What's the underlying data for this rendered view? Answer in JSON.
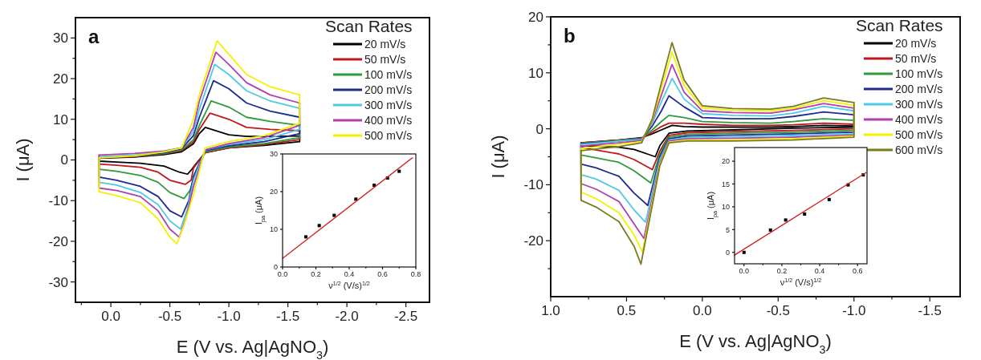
{
  "chart_data": [
    {
      "type": "line",
      "xlabel": "E (V vs. Ag|AgNO$_{3}$)",
      "ylabel": "I (μA)",
      "legend_title": "Scan Rates",
      "legend": "top right",
      "annotations": [
        "a"
      ],
      "xlim": [
        0.3,
        -2.7
      ],
      "ylim": [
        -35,
        35
      ],
      "xticks": [
        {
          "value": 0.25,
          "label": null
        },
        {
          "value": 0,
          "label": "0.0"
        },
        {
          "value": -0.25,
          "label": null
        },
        {
          "value": -0.5,
          "label": "-0.5"
        },
        {
          "value": -0.75,
          "label": null
        },
        {
          "value": -1,
          "label": "-1.0"
        },
        {
          "value": -1.25,
          "label": null
        },
        {
          "value": -1.5,
          "label": "-1.5"
        },
        {
          "value": -1.75,
          "label": null
        },
        {
          "value": -2,
          "label": "-2.0"
        },
        {
          "value": -2.25,
          "label": null
        },
        {
          "value": -2.5,
          "label": "-2.5"
        }
      ],
      "yticks": [
        30,
        {
          "value": 25,
          "label": null
        },
        20,
        {
          "value": 15,
          "label": null
        },
        10,
        {
          "value": 5,
          "label": null
        },
        0,
        {
          "value": -5,
          "label": null
        },
        -10,
        {
          "value": -15,
          "label": null
        },
        -20,
        {
          "value": -25,
          "label": null
        },
        -30
      ],
      "series": [
        {
          "name": "20 mV/s",
          "color": "#000000",
          "x": [
            0.1,
            -0.2,
            -0.45,
            -0.6,
            -0.7,
            -0.75,
            -0.8,
            -1.0,
            -1.15,
            -1.35,
            -1.6
          ],
          "values": [
            0.4,
            0.7,
            1.3,
            2,
            4,
            6.5,
            8,
            6.2,
            5.8,
            5.8,
            5.9
          ]
        },
        {
          "color": "#000000",
          "x": [
            -1.6,
            -1.6,
            -1.3,
            -1.0,
            -0.8,
            -0.72,
            -0.68,
            -0.65,
            -0.58,
            -0.45,
            -0.25,
            -0.05,
            0.1,
            0.1
          ],
          "values": [
            5.9,
            4.5,
            3.6,
            3,
            1.8,
            -1,
            -2.5,
            -3.5,
            -3,
            -1.5,
            -0.8,
            -0.5,
            -0.3,
            0.4
          ]
        },
        {
          "name": "50 mV/s",
          "color": "#c0161f",
          "x": [
            0.1,
            -0.2,
            -0.45,
            -0.6,
            -0.7,
            -0.75,
            -0.84,
            -1.0,
            -1.15,
            -1.35,
            -1.6
          ],
          "values": [
            0.5,
            0.8,
            1.5,
            2.3,
            4.5,
            7.5,
            11.5,
            10,
            8,
            7.5,
            7.2
          ]
        },
        {
          "color": "#c0161f",
          "x": [
            -1.6,
            -1.6,
            -1.3,
            -1.0,
            -0.8,
            -0.7,
            -0.68,
            -0.63,
            -0.5,
            -0.4,
            -0.25,
            -0.05,
            0.1,
            0.1
          ],
          "values": [
            7.2,
            5,
            3.8,
            3,
            1.8,
            -2,
            -5,
            -6,
            -5,
            -3,
            -1.8,
            -1.3,
            -1,
            0.5
          ]
        },
        {
          "name": "100 mV/s",
          "color": "#2e9b3a",
          "x": [
            0.1,
            -0.2,
            -0.45,
            -0.6,
            -0.7,
            -0.75,
            -0.85,
            -1.0,
            -1.15,
            -1.35,
            -1.6
          ],
          "values": [
            0.6,
            0.9,
            1.6,
            2.5,
            5,
            8.5,
            14.5,
            13,
            10.5,
            9.5,
            8.5
          ]
        },
        {
          "color": "#2e9b3a",
          "x": [
            -1.6,
            -1.6,
            -1.3,
            -1.0,
            -0.8,
            -0.72,
            -0.67,
            -0.62,
            -0.5,
            -0.4,
            -0.25,
            -0.05,
            0.1,
            0.1
          ],
          "values": [
            8.5,
            5.5,
            4,
            3.2,
            2,
            -3,
            -7.5,
            -9.5,
            -8,
            -5.5,
            -3.8,
            -2.8,
            -2.3,
            0.6
          ]
        },
        {
          "name": "200 mV/s",
          "color": "#1f2a8f",
          "x": [
            0.1,
            -0.2,
            -0.45,
            -0.6,
            -0.7,
            -0.75,
            -0.87,
            -1.0,
            -1.15,
            -1.35,
            -1.6
          ],
          "values": [
            0.7,
            1,
            1.8,
            2.8,
            6,
            10.5,
            19.5,
            17.5,
            14,
            12,
            10.5
          ]
        },
        {
          "color": "#1f2a8f",
          "x": [
            -1.6,
            -1.6,
            -1.3,
            -1.0,
            -0.8,
            -0.7,
            -0.66,
            -0.6,
            -0.5,
            -0.4,
            -0.25,
            -0.05,
            0.1,
            0.1
          ],
          "values": [
            10.5,
            6.5,
            4.5,
            3.5,
            2.3,
            -4,
            -10,
            -14,
            -12.5,
            -9,
            -6.5,
            -5,
            -4.2,
            0.7
          ]
        },
        {
          "name": "300 mV/s",
          "color": "#4ec9e6",
          "x": [
            0.1,
            -0.2,
            -0.45,
            -0.6,
            -0.7,
            -0.75,
            -0.88,
            -1.0,
            -1.15,
            -1.35,
            -1.6
          ],
          "values": [
            0.8,
            1.2,
            2,
            3,
            7,
            12.5,
            23.5,
            21,
            17,
            14.5,
            12.7
          ]
        },
        {
          "color": "#4ec9e6",
          "x": [
            -1.6,
            -1.6,
            -1.3,
            -1.0,
            -0.8,
            -0.7,
            -0.65,
            -0.59,
            -0.5,
            -0.4,
            -0.25,
            -0.05,
            0.1,
            0.1
          ],
          "values": [
            12.7,
            7.5,
            5,
            3.8,
            2.5,
            -5,
            -12,
            -17,
            -15,
            -11,
            -8,
            -6.2,
            -5.5,
            0.8
          ]
        },
        {
          "name": "400 mV/s",
          "color": "#b03fb0",
          "x": [
            0.1,
            -0.2,
            -0.45,
            -0.6,
            -0.7,
            -0.75,
            -0.89,
            -1.0,
            -1.15,
            -1.35,
            -1.6
          ],
          "values": [
            1.2,
            1.6,
            2.2,
            3,
            8,
            14.5,
            26.5,
            23.5,
            19,
            16,
            14
          ]
        },
        {
          "color": "#b03fb0",
          "x": [
            -1.6,
            -1.6,
            -1.3,
            -1.0,
            -0.8,
            -0.7,
            -0.64,
            -0.58,
            -0.5,
            -0.4,
            -0.25,
            -0.05,
            0.1,
            0.1
          ],
          "values": [
            14,
            8.5,
            5.5,
            4,
            2.5,
            -6.5,
            -14,
            -19,
            -17,
            -12.5,
            -9,
            -7.5,
            -6.9,
            1.2
          ]
        },
        {
          "name": "500 mV/s",
          "color": "#f5f000",
          "x": [
            0.1,
            -0.2,
            -0.45,
            -0.6,
            -0.7,
            -0.75,
            -0.9,
            -1.0,
            -1.15,
            -1.35,
            -1.6
          ],
          "values": [
            0.5,
            1,
            2,
            3,
            10,
            16,
            29.3,
            26,
            21,
            18,
            16
          ]
        },
        {
          "color": "#f5f000",
          "x": [
            -1.6,
            -1.6,
            -1.3,
            -1.0,
            -0.8,
            -0.7,
            -0.62,
            -0.56,
            -0.5,
            -0.4,
            -0.25,
            -0.05,
            0.1,
            0.1
          ],
          "values": [
            16,
            9,
            6,
            4.5,
            3,
            -8.5,
            -16,
            -20.6,
            -19,
            -14.5,
            -10.5,
            -8.8,
            -7.8,
            0.5
          ]
        }
      ]
    },
    {
      "type": "scatter",
      "xlabel": "ν$^{1/2}$ (V/s)$^{1/2}$",
      "ylabel": "I$_{pa}$ (μA)",
      "xlim": [
        0,
        0.8
      ],
      "ylim": [
        0,
        30
      ],
      "xticks": [
        {
          "value": 0,
          "label": "0.0"
        },
        {
          "value": 0.1,
          "label": null
        },
        {
          "value": 0.2,
          "label": "0.2"
        },
        {
          "value": 0.3,
          "label": null
        },
        {
          "value": 0.4,
          "label": "0.4"
        },
        {
          "value": 0.5,
          "label": null
        },
        {
          "value": 0.6,
          "label": "0.6"
        },
        {
          "value": 0.7,
          "label": null
        },
        {
          "value": 0.8,
          "label": "0.8"
        }
      ],
      "yticks": [
        0,
        10,
        20,
        30
      ],
      "series": [
        {
          "marker": "square",
          "color": "#000000",
          "x": [
            0.14,
            0.22,
            0.31,
            0.44,
            0.55,
            0.63,
            0.7
          ],
          "values": [
            8,
            11,
            13.7,
            18,
            21.7,
            23.6,
            25.4
          ]
        },
        {
          "type": "line",
          "color": "#d42020",
          "x": [
            0,
            0.78
          ],
          "values": [
            2.3,
            29
          ]
        }
      ]
    },
    {
      "type": "line",
      "xlabel": "E (V vs. Ag|AgNO$_{3}$)",
      "ylabel": "I (μA)",
      "legend_title": "Scan Rates",
      "legend": "top right",
      "annotations": [
        "b"
      ],
      "xlim": [
        1,
        -1.7
      ],
      "ylim": [
        -30,
        20
      ],
      "xticks": [
        {
          "value": 1,
          "label": "1.0"
        },
        {
          "value": 0.75,
          "label": null
        },
        {
          "value": 0.5,
          "label": "0.5"
        },
        {
          "value": 0.25,
          "label": null
        },
        {
          "value": 0,
          "label": "0.0"
        },
        {
          "value": -0.25,
          "label": null
        },
        {
          "value": -0.5,
          "label": "-0.5"
        },
        {
          "value": -0.75,
          "label": null
        },
        {
          "value": -1,
          "label": "-1.0"
        },
        {
          "value": -1.25,
          "label": null
        },
        {
          "value": -1.5,
          "label": "-1.5"
        }
      ],
      "yticks": [
        20,
        {
          "value": 15,
          "label": null
        },
        10,
        {
          "value": 5,
          "label": null
        },
        0,
        {
          "value": -5,
          "label": null
        },
        -10,
        {
          "value": -15,
          "label": null
        },
        -20,
        {
          "value": -25,
          "label": null
        }
      ],
      "series": [
        {
          "name": "20 mV/s",
          "color": "#000000",
          "x": [
            0.8,
            0.55,
            0.4,
            0.33,
            0.27,
            0.2,
            0.12,
            0,
            -0.2,
            -0.45,
            -0.6,
            -0.8,
            -1
          ],
          "values": [
            -2.5,
            -2,
            -1.6,
            -0.9,
            -0.2,
            0.6,
            0.4,
            0.3,
            0.3,
            0.3,
            0.4,
            0.6,
            0.5
          ]
        },
        {
          "color": "#000000",
          "x": [
            -1,
            -1,
            -0.6,
            -0.2,
            0.1,
            0.22,
            0.28,
            0.31,
            0.45,
            0.55,
            0.7,
            0.8,
            0.8
          ],
          "values": [
            0.5,
            0.3,
            0.1,
            -0.2,
            -0.4,
            -0.8,
            -3,
            -5,
            -3.7,
            -3.3,
            -3.1,
            -3,
            -2.5
          ]
        },
        {
          "name": "50 mV/s",
          "color": "#c0161f",
          "x": [
            0.8,
            0.55,
            0.4,
            0.33,
            0.27,
            0.22,
            0.12,
            0,
            -0.2,
            -0.45,
            -0.6,
            -0.8,
            -1
          ],
          "values": [
            -2.5,
            -2,
            -1.7,
            -0.6,
            0.4,
            1,
            1,
            0.8,
            0.6,
            0.6,
            0.7,
            1,
            0.8
          ]
        },
        {
          "color": "#c0161f",
          "x": [
            -1,
            -1,
            -0.6,
            -0.2,
            0.1,
            0.22,
            0.28,
            0.33,
            0.45,
            0.55,
            0.7,
            0.8,
            0.8
          ],
          "values": [
            0.8,
            0,
            -0.3,
            -0.5,
            -0.7,
            -1.2,
            -4,
            -7.3,
            -5.5,
            -4.5,
            -3.8,
            -3.3,
            -2.5
          ]
        },
        {
          "name": "100 mV/s",
          "color": "#2e9b3a",
          "x": [
            0.8,
            0.55,
            0.4,
            0.33,
            0.27,
            0.22,
            0.12,
            0,
            -0.2,
            -0.45,
            -0.6,
            -0.8,
            -1
          ],
          "values": [
            -2.6,
            -2.1,
            -1.7,
            -0.2,
            1.3,
            2.4,
            2,
            1.3,
            1.1,
            1,
            1.3,
            1.8,
            1.5
          ]
        },
        {
          "color": "#2e9b3a",
          "x": [
            -1,
            -1,
            -0.6,
            -0.2,
            0.1,
            0.22,
            0.28,
            0.34,
            0.45,
            0.55,
            0.7,
            0.8,
            0.8
          ],
          "values": [
            1.5,
            -0.3,
            -0.6,
            -0.8,
            -1,
            -1.5,
            -4.5,
            -9.7,
            -7.5,
            -6,
            -5.2,
            -4.7,
            -2.6
          ]
        },
        {
          "name": "200 mV/s",
          "color": "#1f2a8f",
          "x": [
            0.8,
            0.55,
            0.4,
            0.33,
            0.27,
            0.22,
            0.12,
            0,
            -0.2,
            -0.45,
            -0.6,
            -0.8,
            -1
          ],
          "values": [
            -2.7,
            -2.2,
            -1.8,
            0.5,
            3.2,
            5.9,
            3.9,
            2,
            1.8,
            1.8,
            2.2,
            3,
            2.5
          ]
        },
        {
          "color": "#1f2a8f",
          "x": [
            -1,
            -1,
            -0.6,
            -0.2,
            0.1,
            0.22,
            0.28,
            0.36,
            0.45,
            0.55,
            0.7,
            0.8,
            0.8
          ],
          "values": [
            2.5,
            -0.6,
            -0.9,
            -1.1,
            -1.3,
            -1.8,
            -5,
            -13.7,
            -11.5,
            -8.5,
            -7,
            -6.3,
            -2.7
          ]
        },
        {
          "name": "300 mV/s",
          "color": "#4ec9e6",
          "x": [
            0.8,
            0.55,
            0.4,
            0.33,
            0.27,
            0.2,
            0.12,
            0,
            -0.2,
            -0.45,
            -0.6,
            -0.8,
            -1
          ],
          "values": [
            -2.8,
            -2.2,
            -1.9,
            1,
            4.8,
            9,
            5.3,
            2.7,
            2.4,
            2.3,
            2.8,
            4,
            3.2
          ]
        },
        {
          "color": "#4ec9e6",
          "x": [
            -1,
            -1,
            -0.6,
            -0.2,
            0.1,
            0.22,
            0.28,
            0.375,
            0.45,
            0.55,
            0.7,
            0.8,
            0.8
          ],
          "values": [
            3.2,
            -0.9,
            -1.2,
            -1.4,
            -1.6,
            -2,
            -5.5,
            -16.7,
            -14.5,
            -11,
            -9,
            -8.2,
            -2.8
          ]
        },
        {
          "name": "400 mV/s",
          "color": "#b03fb0",
          "x": [
            0.8,
            0.55,
            0.4,
            0.33,
            0.27,
            0.2,
            0.12,
            0,
            -0.2,
            -0.45,
            -0.6,
            -0.8,
            -1
          ],
          "values": [
            -3.1,
            -2.5,
            -2.1,
            1.4,
            6,
            11.5,
            6.5,
            3.2,
            2.9,
            2.8,
            3.4,
            4.5,
            3.7
          ]
        },
        {
          "color": "#b03fb0",
          "x": [
            -1,
            -1,
            -0.6,
            -0.2,
            0.1,
            0.22,
            0.28,
            0.385,
            0.45,
            0.55,
            0.7,
            0.8,
            0.8
          ],
          "values": [
            3.7,
            -1.1,
            -1.5,
            -1.7,
            -1.8,
            -2.2,
            -6,
            -19.6,
            -17,
            -13,
            -10.8,
            -9.8,
            -3.1
          ]
        },
        {
          "name": "500 mV/s",
          "color": "#f5f000",
          "x": [
            0.8,
            0.55,
            0.4,
            0.33,
            0.27,
            0.2,
            0.12,
            0,
            -0.2,
            -0.45,
            -0.6,
            -0.8,
            -1
          ],
          "values": [
            -3.5,
            -2.8,
            -2.3,
            1.6,
            7.2,
            13.7,
            7.7,
            3.7,
            3.3,
            3.2,
            3.7,
            5,
            4.2
          ]
        },
        {
          "color": "#f5f000",
          "x": [
            -1,
            -1,
            -0.6,
            -0.2,
            0.1,
            0.22,
            0.28,
            0.395,
            0.45,
            0.55,
            0.7,
            0.8,
            0.8
          ],
          "values": [
            4.2,
            -1.3,
            -1.8,
            -2,
            -2,
            -2.4,
            -6.3,
            -22,
            -19,
            -15,
            -12.5,
            -11.3,
            -3.5
          ]
        },
        {
          "name": "600 mV/s",
          "color": "#7a7a20",
          "x": [
            0.8,
            0.55,
            0.4,
            0.33,
            0.27,
            0.2,
            0.12,
            0,
            -0.2,
            -0.45,
            -0.6,
            -0.8,
            -1
          ],
          "values": [
            -3.9,
            -3.2,
            -2.5,
            1.8,
            8.2,
            15.4,
            8.7,
            4.1,
            3.6,
            3.5,
            4,
            5.5,
            4.7
          ]
        },
        {
          "color": "#7a7a20",
          "x": [
            -1,
            -1,
            -0.6,
            -0.2,
            0.1,
            0.22,
            0.28,
            0.405,
            0.45,
            0.55,
            0.7,
            0.8,
            0.8
          ],
          "values": [
            4.7,
            -1.5,
            -2,
            -2.2,
            -2.2,
            -2.5,
            -6.6,
            -24.2,
            -21,
            -16.6,
            -14,
            -12.8,
            -3.9
          ]
        }
      ]
    },
    {
      "type": "scatter",
      "xlabel": "ν$^{1/2}$ (V/s)$^{1/2}$",
      "ylabel": "I$_{pa}$ (μA)",
      "xlim": [
        -0.05,
        0.65
      ],
      "ylim": [
        -2.5,
        23
      ],
      "xticks": [
        {
          "value": 0,
          "label": "0.0"
        },
        {
          "value": 0.1,
          "label": null
        },
        {
          "value": 0.2,
          "label": "0.2"
        },
        {
          "value": 0.3,
          "label": null
        },
        {
          "value": 0.4,
          "label": "0.4"
        },
        {
          "value": 0.5,
          "label": null
        },
        {
          "value": 0.6,
          "label": "0.6"
        }
      ],
      "yticks": [
        0,
        5,
        10,
        15,
        20
      ],
      "series": [
        {
          "marker": "square",
          "color": "#000000",
          "x": [
            0,
            0.14,
            0.22,
            0.32,
            0.45,
            0.55,
            0.63
          ],
          "values": [
            0,
            4.9,
            7.1,
            8.4,
            11.6,
            14.8,
            17
          ]
        },
        {
          "type": "line",
          "color": "#d42020",
          "x": [
            -0.05,
            0.645
          ],
          "values": [
            -0.6,
            17.5
          ]
        }
      ]
    }
  ]
}
